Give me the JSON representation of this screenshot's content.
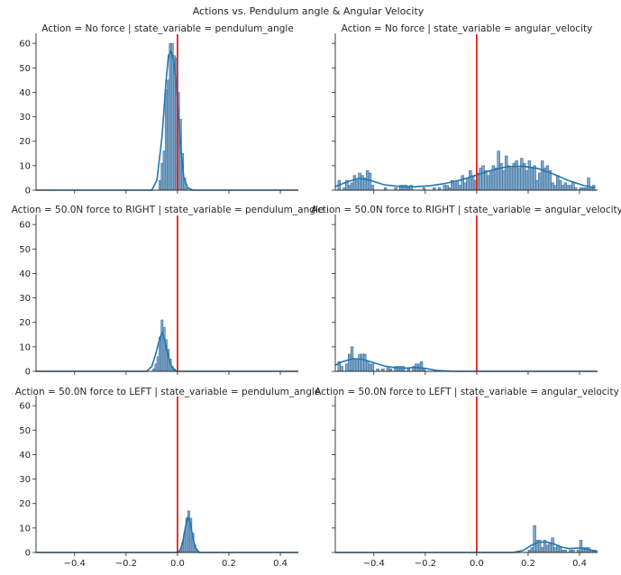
{
  "suptitle": "Actions vs. Pendulum angle & Angular Velocity",
  "colors": {
    "bar_fill": "#7ea6c9",
    "bar_edge": "#3d6d96",
    "kde": "#1f77b4",
    "vline": "#e6221a",
    "axis": "#262626"
  },
  "chart_data": {
    "type": "histogram-facet-grid",
    "xlim": [
      -0.55,
      0.47
    ],
    "ylim": [
      0,
      63
    ],
    "xticks": [
      -0.4,
      -0.2,
      0.0,
      0.2,
      0.4
    ],
    "xtick_labels": [
      "−0.4",
      "−0.2",
      "0.0",
      "0.2",
      "0.4"
    ],
    "yticks": [
      0,
      10,
      20,
      30,
      40,
      50,
      60
    ],
    "ytick_labels": [
      "0",
      "10",
      "20",
      "30",
      "40",
      "50",
      "60"
    ],
    "vline_x": 0.0,
    "bin_width": 0.008,
    "panels": [
      {
        "title": "Action = No force | state_variable = pendulum_angle",
        "bins": [
          [
            -0.072,
            4
          ],
          [
            -0.064,
            11
          ],
          [
            -0.056,
            16
          ],
          [
            -0.048,
            41
          ],
          [
            -0.04,
            45
          ],
          [
            -0.032,
            60
          ],
          [
            -0.024,
            60
          ],
          [
            -0.016,
            55
          ],
          [
            -0.008,
            54
          ],
          [
            0.0,
            40
          ],
          [
            0.008,
            29
          ],
          [
            0.016,
            15
          ],
          [
            0.024,
            5
          ],
          [
            0.032,
            1
          ]
        ],
        "kde": [
          [
            -0.55,
            0
          ],
          [
            -0.1,
            0
          ],
          [
            -0.08,
            4
          ],
          [
            -0.06,
            22
          ],
          [
            -0.045,
            44
          ],
          [
            -0.035,
            55
          ],
          [
            -0.025,
            57
          ],
          [
            -0.015,
            53
          ],
          [
            -0.005,
            44
          ],
          [
            0.005,
            30
          ],
          [
            0.015,
            15
          ],
          [
            0.025,
            5
          ],
          [
            0.04,
            1
          ],
          [
            0.06,
            0
          ],
          [
            0.47,
            0
          ]
        ]
      },
      {
        "title": "Action = No force | state_variable = angular_velocity",
        "bins": [
          [
            -0.54,
            4
          ],
          [
            -0.52,
            1
          ],
          [
            -0.51,
            4
          ],
          [
            -0.5,
            2
          ],
          [
            -0.49,
            3
          ],
          [
            -0.48,
            6
          ],
          [
            -0.47,
            4
          ],
          [
            -0.46,
            7
          ],
          [
            -0.45,
            6
          ],
          [
            -0.44,
            5
          ],
          [
            -0.43,
            8
          ],
          [
            -0.42,
            7
          ],
          [
            -0.41,
            2
          ],
          [
            -0.36,
            1
          ],
          [
            -0.32,
            1
          ],
          [
            -0.3,
            2
          ],
          [
            -0.29,
            2
          ],
          [
            -0.28,
            2
          ],
          [
            -0.27,
            1
          ],
          [
            -0.26,
            2
          ],
          [
            -0.21,
            1
          ],
          [
            -0.17,
            1
          ],
          [
            -0.15,
            1
          ],
          [
            -0.13,
            2
          ],
          [
            -0.12,
            2
          ],
          [
            -0.11,
            1
          ],
          [
            -0.1,
            4
          ],
          [
            -0.09,
            3
          ],
          [
            -0.08,
            4
          ],
          [
            -0.07,
            2
          ],
          [
            -0.06,
            6
          ],
          [
            -0.05,
            3
          ],
          [
            -0.04,
            5
          ],
          [
            -0.03,
            8
          ],
          [
            -0.02,
            6
          ],
          [
            -0.01,
            4
          ],
          [
            0.0,
            7
          ],
          [
            0.01,
            9
          ],
          [
            0.02,
            10
          ],
          [
            0.03,
            8
          ],
          [
            0.04,
            6
          ],
          [
            0.05,
            8
          ],
          [
            0.06,
            10
          ],
          [
            0.07,
            9
          ],
          [
            0.08,
            16
          ],
          [
            0.09,
            11
          ],
          [
            0.1,
            8
          ],
          [
            0.11,
            14
          ],
          [
            0.12,
            10
          ],
          [
            0.13,
            9
          ],
          [
            0.14,
            11
          ],
          [
            0.15,
            12
          ],
          [
            0.16,
            9
          ],
          [
            0.17,
            13
          ],
          [
            0.18,
            11
          ],
          [
            0.19,
            8
          ],
          [
            0.2,
            12
          ],
          [
            0.21,
            9
          ],
          [
            0.22,
            10
          ],
          [
            0.23,
            4
          ],
          [
            0.24,
            7
          ],
          [
            0.25,
            12
          ],
          [
            0.26,
            9
          ],
          [
            0.27,
            10
          ],
          [
            0.28,
            8
          ],
          [
            0.29,
            3
          ],
          [
            0.3,
            2
          ],
          [
            0.31,
            6
          ],
          [
            0.32,
            4
          ],
          [
            0.33,
            2
          ],
          [
            0.34,
            3
          ],
          [
            0.35,
            2
          ],
          [
            0.36,
            2
          ],
          [
            0.37,
            3
          ],
          [
            0.38,
            1
          ],
          [
            0.4,
            1
          ],
          [
            0.41,
            1
          ],
          [
            0.42,
            1
          ],
          [
            0.43,
            5
          ],
          [
            0.44,
            1
          ],
          [
            0.45,
            2
          ]
        ],
        "kde": [
          [
            -0.55,
            1.5
          ],
          [
            -0.5,
            3.5
          ],
          [
            -0.46,
            4.8
          ],
          [
            -0.42,
            4.2
          ],
          [
            -0.36,
            2.2
          ],
          [
            -0.3,
            1.5
          ],
          [
            -0.24,
            1.4
          ],
          [
            -0.18,
            1.8
          ],
          [
            -0.12,
            2.8
          ],
          [
            -0.06,
            4.2
          ],
          [
            0.0,
            6.2
          ],
          [
            0.06,
            8.2
          ],
          [
            0.12,
            9.6
          ],
          [
            0.18,
            9.8
          ],
          [
            0.24,
            8.8
          ],
          [
            0.3,
            6.5
          ],
          [
            0.36,
            3.8
          ],
          [
            0.42,
            1.8
          ],
          [
            0.46,
            1.0
          ]
        ]
      },
      {
        "title": "Action = 50.0N force to RIGHT | state_variable = pendulum_angle",
        "bins": [
          [
            -0.096,
            1
          ],
          [
            -0.088,
            3
          ],
          [
            -0.08,
            6
          ],
          [
            -0.072,
            14
          ],
          [
            -0.064,
            21
          ],
          [
            -0.056,
            18
          ],
          [
            -0.048,
            13
          ],
          [
            -0.04,
            9
          ],
          [
            -0.032,
            5
          ],
          [
            -0.024,
            2
          ],
          [
            -0.016,
            1
          ]
        ],
        "kde": [
          [
            -0.55,
            0
          ],
          [
            -0.12,
            0
          ],
          [
            -0.1,
            2
          ],
          [
            -0.085,
            7
          ],
          [
            -0.07,
            13
          ],
          [
            -0.06,
            16
          ],
          [
            -0.05,
            13
          ],
          [
            -0.04,
            8
          ],
          [
            -0.03,
            4
          ],
          [
            -0.02,
            1.5
          ],
          [
            -0.005,
            0
          ],
          [
            0.47,
            0
          ]
        ]
      },
      {
        "title": "Action = 50.0N force to RIGHT | state_variable = angular_velocity",
        "bins": [
          [
            -0.54,
            4
          ],
          [
            -0.53,
            2
          ],
          [
            -0.51,
            3
          ],
          [
            -0.5,
            7
          ],
          [
            -0.49,
            10
          ],
          [
            -0.48,
            5
          ],
          [
            -0.47,
            5
          ],
          [
            -0.46,
            7
          ],
          [
            -0.45,
            7
          ],
          [
            -0.44,
            7
          ],
          [
            -0.43,
            4
          ],
          [
            -0.42,
            3
          ],
          [
            -0.41,
            3
          ],
          [
            -0.39,
            1
          ],
          [
            -0.37,
            1
          ],
          [
            -0.35,
            2
          ],
          [
            -0.34,
            1
          ],
          [
            -0.32,
            2
          ],
          [
            -0.31,
            2
          ],
          [
            -0.3,
            2
          ],
          [
            -0.29,
            2
          ],
          [
            -0.27,
            1
          ],
          [
            -0.25,
            2
          ],
          [
            -0.24,
            3
          ],
          [
            -0.23,
            3
          ],
          [
            -0.22,
            4
          ],
          [
            -0.21,
            1
          ]
        ],
        "kde": [
          [
            -0.55,
            2.5
          ],
          [
            -0.52,
            4
          ],
          [
            -0.48,
            5.2
          ],
          [
            -0.44,
            4.8
          ],
          [
            -0.4,
            3.5
          ],
          [
            -0.36,
            2.2
          ],
          [
            -0.32,
            1.5
          ],
          [
            -0.28,
            1.3
          ],
          [
            -0.24,
            1.6
          ],
          [
            -0.2,
            1.2
          ],
          [
            -0.16,
            0.4
          ],
          [
            -0.1,
            0
          ],
          [
            0.47,
            0
          ]
        ]
      },
      {
        "title": "Action = 50.0N force to LEFT | state_variable = pendulum_angle",
        "bins": [
          [
            0.008,
            1
          ],
          [
            0.016,
            4
          ],
          [
            0.024,
            8
          ],
          [
            0.032,
            14
          ],
          [
            0.04,
            17
          ],
          [
            0.048,
            14
          ],
          [
            0.056,
            8
          ],
          [
            0.064,
            3
          ],
          [
            0.072,
            1
          ]
        ],
        "kde": [
          [
            -0.55,
            0
          ],
          [
            0.0,
            0
          ],
          [
            0.01,
            1
          ],
          [
            0.02,
            4
          ],
          [
            0.03,
            10
          ],
          [
            0.04,
            14.5
          ],
          [
            0.05,
            12
          ],
          [
            0.06,
            6
          ],
          [
            0.07,
            2
          ],
          [
            0.085,
            0
          ],
          [
            0.47,
            0
          ]
        ]
      },
      {
        "title": "Action = 50.0N force to LEFT | state_variable = angular_velocity",
        "bins": [
          [
            0.2,
            1
          ],
          [
            0.21,
            2
          ],
          [
            0.22,
            11
          ],
          [
            0.23,
            5
          ],
          [
            0.24,
            5
          ],
          [
            0.25,
            2
          ],
          [
            0.26,
            5
          ],
          [
            0.27,
            3
          ],
          [
            0.28,
            4
          ],
          [
            0.29,
            6
          ],
          [
            0.3,
            2
          ],
          [
            0.31,
            3
          ],
          [
            0.32,
            2
          ],
          [
            0.33,
            1
          ],
          [
            0.34,
            1
          ],
          [
            0.36,
            1
          ],
          [
            0.37,
            1
          ],
          [
            0.39,
            1
          ],
          [
            0.4,
            5
          ],
          [
            0.41,
            2
          ],
          [
            0.42,
            2
          ],
          [
            0.43,
            2
          ],
          [
            0.44,
            1
          ],
          [
            0.45,
            1
          ]
        ],
        "kde": [
          [
            -0.55,
            0
          ],
          [
            0.14,
            0
          ],
          [
            0.18,
            0.8
          ],
          [
            0.21,
            2.8
          ],
          [
            0.24,
            4.2
          ],
          [
            0.27,
            4.3
          ],
          [
            0.3,
            3.5
          ],
          [
            0.33,
            2.2
          ],
          [
            0.36,
            1.6
          ],
          [
            0.39,
            1.8
          ],
          [
            0.42,
            1.6
          ],
          [
            0.45,
            0.8
          ],
          [
            0.47,
            0.5
          ]
        ]
      }
    ]
  }
}
